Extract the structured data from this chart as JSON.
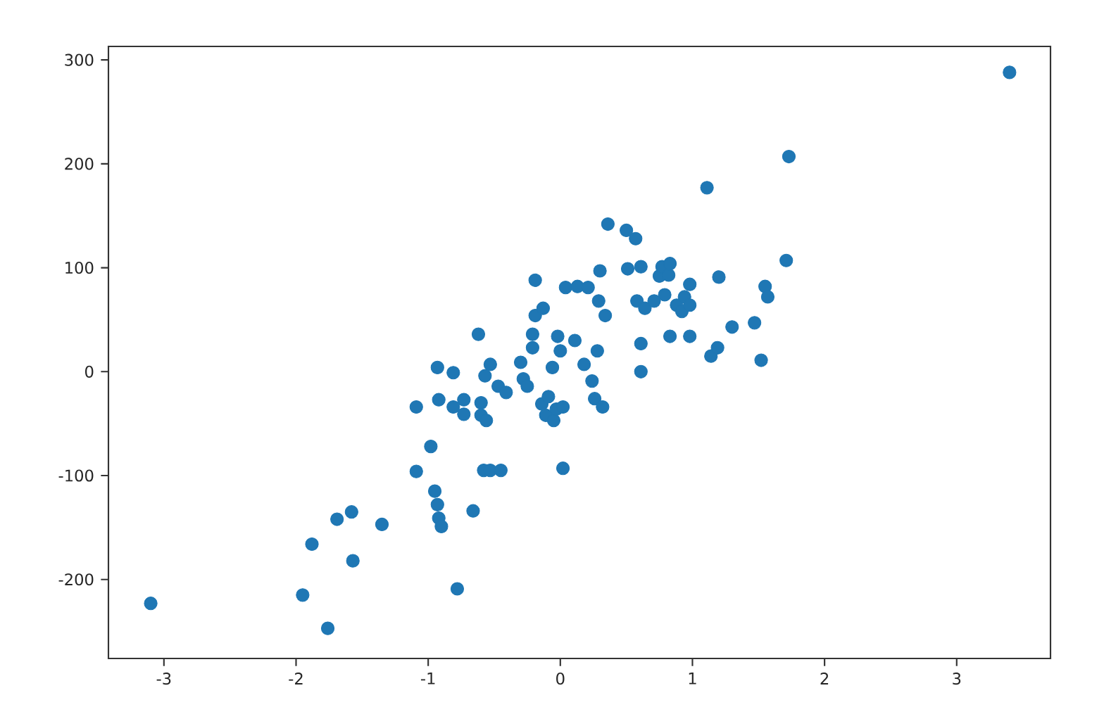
{
  "chart_data": {
    "type": "scatter",
    "marker": "circle",
    "xlim": [
      -3.42,
      3.71
    ],
    "ylim": [
      -276,
      313
    ],
    "xticks": [
      -3,
      -2,
      -1,
      0,
      1,
      2,
      3
    ],
    "yticks": [
      -200,
      -100,
      0,
      100,
      200,
      300
    ],
    "series": [
      {
        "color": "#1f77b4",
        "x": [
          -3.1,
          3.4,
          1.73,
          1.11,
          1.71,
          -1.88,
          -1.95,
          -1.76,
          -1.69,
          -1.58,
          -1.57,
          -1.35,
          -1.09,
          -1.09,
          -0.98,
          -0.95,
          -0.93,
          -0.93,
          -0.92,
          -0.9,
          -0.92,
          -0.81,
          -0.78,
          -0.81,
          -0.73,
          -0.73,
          -0.66,
          -0.62,
          -0.6,
          -0.6,
          -0.58,
          -0.57,
          -0.56,
          -0.53,
          -0.53,
          -0.45,
          -0.47,
          -0.41,
          -0.3,
          -0.28,
          -0.25,
          -0.21,
          -0.21,
          -0.19,
          -0.19,
          -0.13,
          -0.14,
          -0.11,
          -0.09,
          -0.06,
          -0.05,
          -0.03,
          -0.02,
          0.0,
          0.02,
          0.02,
          0.04,
          0.11,
          0.13,
          0.18,
          0.21,
          0.24,
          0.26,
          0.28,
          0.29,
          0.3,
          0.32,
          0.34,
          0.36,
          0.5,
          0.51,
          0.57,
          0.58,
          0.61,
          0.64,
          0.61,
          0.61,
          0.71,
          0.75,
          0.77,
          0.79,
          0.82,
          0.83,
          0.83,
          0.88,
          0.92,
          0.98,
          0.98,
          0.94,
          0.98,
          1.14,
          1.2,
          1.19,
          1.3,
          1.47,
          1.52,
          1.55,
          1.57
        ],
        "values": [
          -223,
          288,
          207,
          177,
          107,
          -166,
          -215,
          -247,
          -142,
          -135,
          -182,
          -147,
          -34,
          -96,
          -72,
          -115,
          4,
          -128,
          -141,
          -149,
          -27,
          -1,
          -209,
          -34,
          -27,
          -41,
          -134,
          36,
          -30,
          -42,
          -95,
          -4,
          -47,
          7,
          -95,
          -95,
          -14,
          -20,
          9,
          -7,
          -14,
          36,
          23,
          54,
          88,
          61,
          -31,
          -42,
          -24,
          4,
          -47,
          -36,
          34,
          20,
          -93,
          -34,
          81,
          30,
          82,
          7,
          81,
          -9,
          -26,
          20,
          68,
          97,
          -34,
          54,
          142,
          136,
          99,
          128,
          68,
          101,
          61,
          27,
          0,
          68,
          92,
          101,
          74,
          93,
          34,
          104,
          64,
          58,
          34,
          84,
          72,
          64,
          15,
          91,
          23,
          43,
          47,
          11,
          82,
          72
        ]
      }
    ]
  }
}
